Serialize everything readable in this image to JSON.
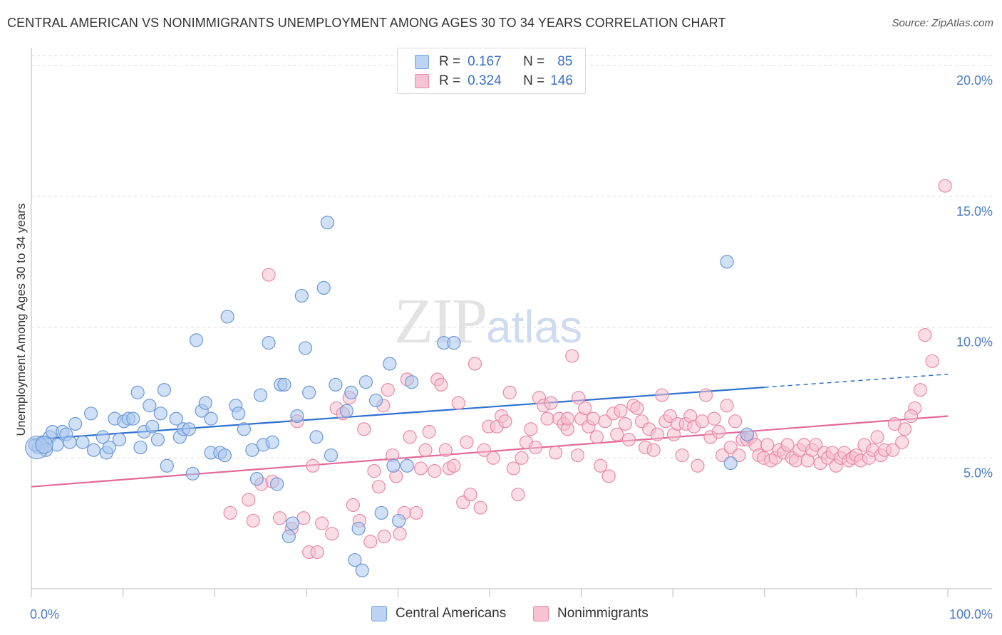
{
  "header": {
    "title": "CENTRAL AMERICAN VS NONIMMIGRANTS UNEMPLOYMENT AMONG AGES 30 TO 34 YEARS CORRELATION CHART",
    "source": "Source: ZipAtlas.com"
  },
  "watermark": {
    "zip": "ZIP",
    "atlas": "atlas"
  },
  "legend": {
    "rows": [
      {
        "r_label": "R =",
        "r_value": "0.167",
        "n_label": "N =",
        "n_value": "85",
        "fill": "#bcd3f3",
        "stroke": "#7aa3dd"
      },
      {
        "r_label": "R =",
        "r_value": "0.324",
        "n_label": "N =",
        "n_value": "146",
        "fill": "#f7c3d3",
        "stroke": "#e98aa8"
      }
    ]
  },
  "bottom_legend": {
    "central": "Central Americans",
    "nonimm": "Nonimmigrants"
  },
  "colors": {
    "blue_fill": "#aac6ee",
    "blue_stroke": "#6d98d6",
    "blue_line": "#2f6fcf",
    "pink_fill": "#f6bfd0",
    "pink_stroke": "#e98aa8",
    "pink_line": "#e2699a",
    "grid": "#d9d9d9"
  },
  "chart_data": {
    "type": "scatter",
    "title": "CENTRAL AMERICAN VS NONIMMIGRANTS UNEMPLOYMENT AMONG AGES 30 TO 34 YEARS CORRELATION CHART",
    "xlabel": "",
    "ylabel": "Unemployment Among Ages 30 to 34 years",
    "xlim": [
      0,
      100
    ],
    "ylim": [
      0,
      20.6
    ],
    "x_tick_labels": [
      "0.0%",
      "100.0%"
    ],
    "y_ticks": [
      5,
      10,
      15,
      20
    ],
    "y_tick_labels": [
      "5.0%",
      "10.0%",
      "15.0%",
      "20.0%"
    ],
    "grid": "horizontal dashed",
    "legend_position": "top-center",
    "series": [
      {
        "name": "Central Americans",
        "R": 0.167,
        "N": 85,
        "trend": {
          "x0": 0,
          "y0": 5.7,
          "x1": 80,
          "y1": 7.7,
          "dashed_to_x": 100,
          "dashed_to_y": 8.2
        },
        "points": [
          [
            0.8,
            5.4
          ],
          [
            1.2,
            5.6
          ],
          [
            1.6,
            5.3
          ],
          [
            2.0,
            5.8
          ],
          [
            2.3,
            6.0
          ],
          [
            2.8,
            5.5
          ],
          [
            3.4,
            6.0
          ],
          [
            3.8,
            5.9
          ],
          [
            4.2,
            5.6
          ],
          [
            4.8,
            6.3
          ],
          [
            5.6,
            5.6
          ],
          [
            6.5,
            6.7
          ],
          [
            6.8,
            5.3
          ],
          [
            7.8,
            5.8
          ],
          [
            8.2,
            5.2
          ],
          [
            8.5,
            5.4
          ],
          [
            9.1,
            6.5
          ],
          [
            9.6,
            5.7
          ],
          [
            10.1,
            6.4
          ],
          [
            10.6,
            6.5
          ],
          [
            11.1,
            6.5
          ],
          [
            11.6,
            7.5
          ],
          [
            11.9,
            5.4
          ],
          [
            12.3,
            6.0
          ],
          [
            12.9,
            7.0
          ],
          [
            13.2,
            6.2
          ],
          [
            13.8,
            5.7
          ],
          [
            14.1,
            6.7
          ],
          [
            14.5,
            7.6
          ],
          [
            14.8,
            4.7
          ],
          [
            15.8,
            6.5
          ],
          [
            16.2,
            5.8
          ],
          [
            16.6,
            6.1
          ],
          [
            17.2,
            6.1
          ],
          [
            17.6,
            4.4
          ],
          [
            18.0,
            9.5
          ],
          [
            18.6,
            6.8
          ],
          [
            19.0,
            7.1
          ],
          [
            19.6,
            6.5
          ],
          [
            19.6,
            5.2
          ],
          [
            20.6,
            5.2
          ],
          [
            21.1,
            5.1
          ],
          [
            21.4,
            10.4
          ],
          [
            22.3,
            7.0
          ],
          [
            22.6,
            6.7
          ],
          [
            23.2,
            6.1
          ],
          [
            24.1,
            5.3
          ],
          [
            24.6,
            4.2
          ],
          [
            25.0,
            7.4
          ],
          [
            25.3,
            5.5
          ],
          [
            25.9,
            9.4
          ],
          [
            26.3,
            5.6
          ],
          [
            26.8,
            4.0
          ],
          [
            27.2,
            7.8
          ],
          [
            27.6,
            7.8
          ],
          [
            28.1,
            2.0
          ],
          [
            28.5,
            2.5
          ],
          [
            29.0,
            6.6
          ],
          [
            29.5,
            11.2
          ],
          [
            29.9,
            9.2
          ],
          [
            30.3,
            7.5
          ],
          [
            31.1,
            5.8
          ],
          [
            31.9,
            11.5
          ],
          [
            32.3,
            14.0
          ],
          [
            32.7,
            5.1
          ],
          [
            33.2,
            7.8
          ],
          [
            34.4,
            6.8
          ],
          [
            34.9,
            7.5
          ],
          [
            35.3,
            1.1
          ],
          [
            35.7,
            2.3
          ],
          [
            36.1,
            0.7
          ],
          [
            36.5,
            7.9
          ],
          [
            37.6,
            7.2
          ],
          [
            38.2,
            2.9
          ],
          [
            39.1,
            8.6
          ],
          [
            39.5,
            4.7
          ],
          [
            40.1,
            2.6
          ],
          [
            41.0,
            4.7
          ],
          [
            41.5,
            7.9
          ],
          [
            45.0,
            9.4
          ],
          [
            46.1,
            9.4
          ],
          [
            75.9,
            12.5
          ],
          [
            76.3,
            4.8
          ],
          [
            78.1,
            5.9
          ],
          [
            0.4,
            5.5
          ]
        ]
      },
      {
        "name": "Nonimmigrants",
        "R": 0.324,
        "N": 146,
        "trend": {
          "x0": 0,
          "y0": 3.9,
          "x1": 100,
          "y1": 6.6
        },
        "points": [
          [
            21.7,
            2.9
          ],
          [
            23.7,
            3.4
          ],
          [
            24.2,
            2.6
          ],
          [
            25.1,
            4.0
          ],
          [
            25.9,
            12.0
          ],
          [
            26.3,
            4.1
          ],
          [
            27.1,
            2.7
          ],
          [
            28.4,
            2.3
          ],
          [
            29.0,
            6.4
          ],
          [
            29.7,
            2.7
          ],
          [
            30.3,
            1.4
          ],
          [
            30.7,
            4.7
          ],
          [
            31.2,
            1.4
          ],
          [
            31.7,
            2.5
          ],
          [
            32.8,
            2.1
          ],
          [
            33.3,
            6.9
          ],
          [
            34.0,
            6.7
          ],
          [
            34.7,
            7.3
          ],
          [
            35.1,
            3.2
          ],
          [
            35.8,
            2.6
          ],
          [
            36.3,
            6.1
          ],
          [
            37.0,
            1.8
          ],
          [
            37.4,
            4.5
          ],
          [
            37.9,
            3.9
          ],
          [
            38.4,
            7.0
          ],
          [
            38.9,
            7.6
          ],
          [
            39.4,
            5.1
          ],
          [
            39.8,
            4.3
          ],
          [
            40.2,
            2.1
          ],
          [
            40.7,
            2.9
          ],
          [
            41.3,
            5.8
          ],
          [
            42.0,
            2.9
          ],
          [
            42.5,
            4.6
          ],
          [
            43.0,
            5.3
          ],
          [
            43.4,
            6.0
          ],
          [
            44.0,
            4.5
          ],
          [
            44.3,
            8.0
          ],
          [
            44.7,
            7.8
          ],
          [
            45.2,
            5.3
          ],
          [
            45.6,
            4.6
          ],
          [
            46.1,
            4.7
          ],
          [
            46.6,
            7.1
          ],
          [
            47.1,
            3.3
          ],
          [
            47.5,
            5.6
          ],
          [
            47.9,
            3.6
          ],
          [
            48.4,
            8.6
          ],
          [
            49.0,
            3.1
          ],
          [
            49.4,
            5.3
          ],
          [
            49.9,
            6.2
          ],
          [
            50.4,
            5.0
          ],
          [
            50.8,
            6.2
          ],
          [
            51.3,
            6.6
          ],
          [
            51.7,
            6.4
          ],
          [
            52.2,
            7.5
          ],
          [
            52.6,
            4.6
          ],
          [
            53.1,
            3.6
          ],
          [
            53.5,
            5.0
          ],
          [
            54.0,
            5.6
          ],
          [
            54.5,
            6.1
          ],
          [
            55.0,
            5.4
          ],
          [
            55.4,
            7.3
          ],
          [
            55.9,
            7.0
          ],
          [
            56.3,
            6.5
          ],
          [
            56.7,
            7.1
          ],
          [
            57.2,
            5.2
          ],
          [
            57.6,
            6.5
          ],
          [
            58.1,
            6.3
          ],
          [
            58.5,
            6.1
          ],
          [
            59.0,
            8.9
          ],
          [
            59.6,
            5.1
          ],
          [
            60.0,
            6.5
          ],
          [
            60.4,
            6.9
          ],
          [
            60.8,
            6.2
          ],
          [
            61.3,
            6.5
          ],
          [
            61.7,
            5.8
          ],
          [
            62.1,
            4.7
          ],
          [
            62.6,
            6.4
          ],
          [
            63.0,
            4.3
          ],
          [
            63.5,
            6.7
          ],
          [
            63.9,
            5.9
          ],
          [
            64.3,
            6.8
          ],
          [
            64.8,
            6.3
          ],
          [
            65.2,
            5.7
          ],
          [
            65.7,
            7.0
          ],
          [
            66.1,
            6.9
          ],
          [
            66.6,
            6.4
          ],
          [
            67.0,
            5.4
          ],
          [
            67.4,
            6.1
          ],
          [
            67.9,
            5.3
          ],
          [
            68.3,
            5.9
          ],
          [
            68.8,
            7.4
          ],
          [
            69.2,
            6.4
          ],
          [
            69.7,
            6.6
          ],
          [
            70.1,
            5.9
          ],
          [
            70.5,
            6.3
          ],
          [
            71.0,
            5.1
          ],
          [
            71.4,
            6.3
          ],
          [
            71.9,
            6.6
          ],
          [
            72.3,
            6.2
          ],
          [
            72.7,
            4.7
          ],
          [
            73.2,
            6.4
          ],
          [
            73.6,
            7.4
          ],
          [
            74.1,
            5.8
          ],
          [
            74.5,
            6.5
          ],
          [
            75.0,
            6.0
          ],
          [
            75.4,
            5.1
          ],
          [
            75.9,
            7.0
          ],
          [
            76.3,
            5.4
          ],
          [
            76.8,
            6.4
          ],
          [
            77.2,
            5.1
          ],
          [
            77.6,
            5.7
          ],
          [
            78.1,
            5.7
          ],
          [
            78.5,
            5.8
          ],
          [
            79.0,
            5.5
          ],
          [
            79.4,
            5.1
          ],
          [
            79.9,
            5.0
          ],
          [
            80.3,
            5.5
          ],
          [
            80.7,
            4.9
          ],
          [
            81.2,
            5.0
          ],
          [
            81.6,
            5.3
          ],
          [
            82.1,
            5.2
          ],
          [
            82.5,
            5.5
          ],
          [
            83.0,
            5.0
          ],
          [
            83.4,
            4.9
          ],
          [
            83.8,
            5.3
          ],
          [
            84.3,
            5.5
          ],
          [
            84.7,
            4.9
          ],
          [
            85.2,
            5.3
          ],
          [
            85.6,
            5.5
          ],
          [
            86.1,
            4.8
          ],
          [
            86.5,
            5.2
          ],
          [
            86.9,
            5.0
          ],
          [
            87.4,
            5.2
          ],
          [
            87.8,
            4.7
          ],
          [
            88.3,
            5.0
          ],
          [
            88.7,
            5.2
          ],
          [
            89.2,
            4.9
          ],
          [
            89.6,
            5.0
          ],
          [
            90.0,
            5.1
          ],
          [
            90.5,
            4.9
          ],
          [
            90.9,
            5.5
          ],
          [
            91.4,
            5.0
          ],
          [
            91.8,
            5.3
          ],
          [
            92.3,
            5.8
          ],
          [
            92.7,
            5.1
          ],
          [
            93.1,
            5.3
          ],
          [
            94.2,
            6.3
          ],
          [
            95.3,
            6.1
          ],
          [
            96.4,
            6.9
          ],
          [
            98.3,
            8.7
          ]
        ]
      }
    ],
    "extra_points_nonimmigrants": [
      [
        97.5,
        9.7
      ],
      [
        99.7,
        15.4
      ],
      [
        97.0,
        7.6
      ],
      [
        96.0,
        6.6
      ],
      [
        95.0,
        5.6
      ],
      [
        94.0,
        5.3
      ],
      [
        58.5,
        6.5
      ],
      [
        59.7,
        7.3
      ],
      [
        41.0,
        8.0
      ],
      [
        38.5,
        2.0
      ]
    ]
  }
}
